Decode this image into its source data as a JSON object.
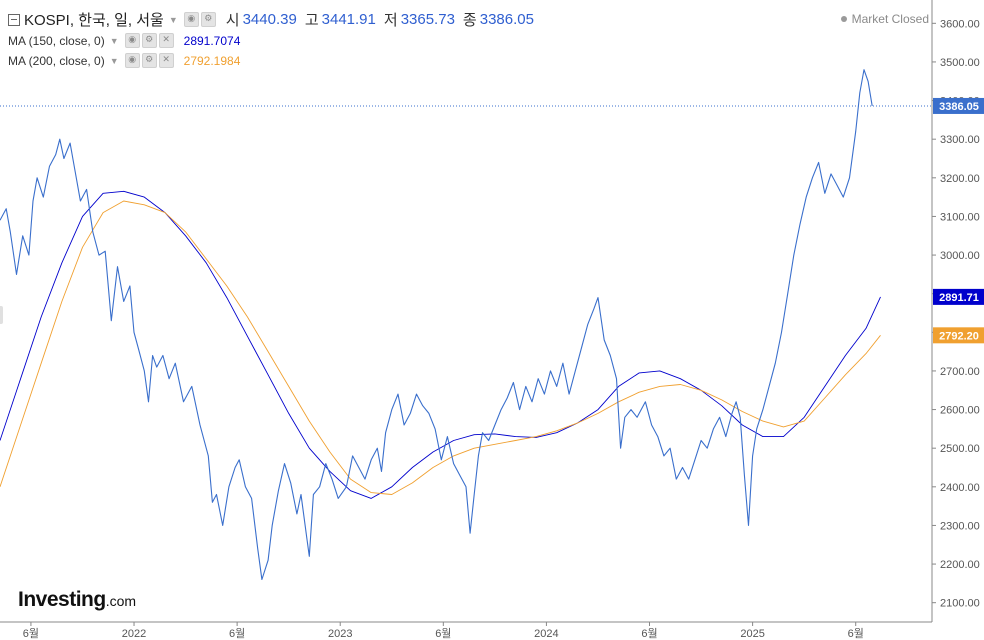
{
  "header": {
    "symbol": "KOSPI, 한국, 일, 서울",
    "open_label": "시",
    "open": "3440.39",
    "high_label": "고",
    "high": "3441.91",
    "low_label": "저",
    "low": "3365.73",
    "close_label": "종",
    "close": "3386.05",
    "status": "Market Closed"
  },
  "indicators": [
    {
      "label": "MA (150, close, 0)",
      "value": "2891.7074",
      "color": "#0000cc"
    },
    {
      "label": "MA (200, close, 0)",
      "value": "2792.1984",
      "color": "#f0a030"
    }
  ],
  "logo": {
    "text": "Investing",
    "suffix": ".com"
  },
  "price_tags": {
    "last": "3386.05",
    "ma150": "2891.71",
    "ma200": "2792.20"
  },
  "colors": {
    "price": "#3a6fcc",
    "ma150": "#0000cc",
    "ma200": "#f0a030",
    "last_tag": "#3a6fcc",
    "axis": "#555555"
  },
  "chart_data": {
    "type": "line",
    "x_ticks": [
      {
        "label": "6월",
        "t": 1
      },
      {
        "label": "2022",
        "t": 6
      },
      {
        "label": "6월",
        "t": 11
      },
      {
        "label": "2023",
        "t": 16
      },
      {
        "label": "6월",
        "t": 21
      },
      {
        "label": "2024",
        "t": 26
      },
      {
        "label": "6월",
        "t": 31
      },
      {
        "label": "2025",
        "t": 36
      },
      {
        "label": "6월",
        "t": 41
      }
    ],
    "y_ticks": [
      2100,
      2200,
      2300,
      2400,
      2500,
      2600,
      2700,
      2800,
      2900,
      3000,
      3100,
      3200,
      3300,
      3400,
      3500,
      3600
    ],
    "ylim": [
      2050,
      3650
    ],
    "xlim": [
      -0.5,
      44.7
    ],
    "series": [
      {
        "name": "KOSPI",
        "points": [
          [
            -0.5,
            3090
          ],
          [
            -0.2,
            3120
          ],
          [
            0.0,
            3060
          ],
          [
            0.3,
            2950
          ],
          [
            0.6,
            3050
          ],
          [
            0.9,
            3000
          ],
          [
            1.1,
            3140
          ],
          [
            1.3,
            3200
          ],
          [
            1.6,
            3150
          ],
          [
            1.9,
            3230
          ],
          [
            2.2,
            3260
          ],
          [
            2.4,
            3300
          ],
          [
            2.6,
            3250
          ],
          [
            2.9,
            3290
          ],
          [
            3.1,
            3230
          ],
          [
            3.4,
            3140
          ],
          [
            3.7,
            3170
          ],
          [
            4.0,
            3060
          ],
          [
            4.3,
            3000
          ],
          [
            4.6,
            3010
          ],
          [
            4.9,
            2830
          ],
          [
            5.2,
            2970
          ],
          [
            5.5,
            2880
          ],
          [
            5.8,
            2920
          ],
          [
            6.0,
            2800
          ],
          [
            6.2,
            2760
          ],
          [
            6.5,
            2700
          ],
          [
            6.7,
            2620
          ],
          [
            6.9,
            2740
          ],
          [
            7.1,
            2710
          ],
          [
            7.4,
            2740
          ],
          [
            7.7,
            2680
          ],
          [
            8.0,
            2720
          ],
          [
            8.4,
            2620
          ],
          [
            8.8,
            2660
          ],
          [
            9.2,
            2560
          ],
          [
            9.6,
            2480
          ],
          [
            9.8,
            2360
          ],
          [
            10.0,
            2380
          ],
          [
            10.3,
            2300
          ],
          [
            10.6,
            2400
          ],
          [
            10.9,
            2450
          ],
          [
            11.1,
            2470
          ],
          [
            11.4,
            2400
          ],
          [
            11.7,
            2370
          ],
          [
            12.0,
            2240
          ],
          [
            12.2,
            2160
          ],
          [
            12.5,
            2210
          ],
          [
            12.7,
            2300
          ],
          [
            13.0,
            2390
          ],
          [
            13.3,
            2460
          ],
          [
            13.6,
            2410
          ],
          [
            13.9,
            2330
          ],
          [
            14.1,
            2380
          ],
          [
            14.4,
            2260
          ],
          [
            14.5,
            2220
          ],
          [
            14.7,
            2380
          ],
          [
            15.0,
            2400
          ],
          [
            15.3,
            2460
          ],
          [
            15.6,
            2420
          ],
          [
            15.9,
            2370
          ],
          [
            16.3,
            2400
          ],
          [
            16.6,
            2480
          ],
          [
            16.9,
            2450
          ],
          [
            17.2,
            2420
          ],
          [
            17.5,
            2470
          ],
          [
            17.8,
            2500
          ],
          [
            18.0,
            2440
          ],
          [
            18.2,
            2540
          ],
          [
            18.5,
            2600
          ],
          [
            18.8,
            2640
          ],
          [
            19.1,
            2560
          ],
          [
            19.4,
            2590
          ],
          [
            19.7,
            2640
          ],
          [
            20.0,
            2610
          ],
          [
            20.3,
            2590
          ],
          [
            20.6,
            2550
          ],
          [
            20.9,
            2470
          ],
          [
            21.2,
            2530
          ],
          [
            21.5,
            2460
          ],
          [
            21.8,
            2430
          ],
          [
            22.1,
            2400
          ],
          [
            22.3,
            2280
          ],
          [
            22.5,
            2380
          ],
          [
            22.7,
            2480
          ],
          [
            22.9,
            2540
          ],
          [
            23.2,
            2520
          ],
          [
            23.5,
            2560
          ],
          [
            23.8,
            2600
          ],
          [
            24.1,
            2630
          ],
          [
            24.4,
            2670
          ],
          [
            24.7,
            2600
          ],
          [
            25.0,
            2660
          ],
          [
            25.3,
            2620
          ],
          [
            25.6,
            2680
          ],
          [
            25.9,
            2640
          ],
          [
            26.2,
            2700
          ],
          [
            26.5,
            2660
          ],
          [
            26.8,
            2720
          ],
          [
            27.1,
            2640
          ],
          [
            27.4,
            2700
          ],
          [
            27.7,
            2760
          ],
          [
            28.0,
            2820
          ],
          [
            28.3,
            2860
          ],
          [
            28.5,
            2890
          ],
          [
            28.8,
            2780
          ],
          [
            29.1,
            2740
          ],
          [
            29.4,
            2680
          ],
          [
            29.6,
            2500
          ],
          [
            29.8,
            2580
          ],
          [
            30.1,
            2600
          ],
          [
            30.4,
            2580
          ],
          [
            30.8,
            2620
          ],
          [
            31.1,
            2560
          ],
          [
            31.4,
            2530
          ],
          [
            31.7,
            2480
          ],
          [
            32.0,
            2500
          ],
          [
            32.3,
            2420
          ],
          [
            32.6,
            2450
          ],
          [
            32.9,
            2420
          ],
          [
            33.2,
            2470
          ],
          [
            33.5,
            2520
          ],
          [
            33.8,
            2500
          ],
          [
            34.1,
            2550
          ],
          [
            34.4,
            2580
          ],
          [
            34.7,
            2530
          ],
          [
            35.0,
            2590
          ],
          [
            35.2,
            2620
          ],
          [
            35.4,
            2580
          ],
          [
            35.6,
            2430
          ],
          [
            35.8,
            2300
          ],
          [
            36.0,
            2480
          ],
          [
            36.2,
            2550
          ],
          [
            36.5,
            2600
          ],
          [
            36.8,
            2660
          ],
          [
            37.1,
            2720
          ],
          [
            37.4,
            2800
          ],
          [
            37.7,
            2900
          ],
          [
            38.0,
            3000
          ],
          [
            38.3,
            3080
          ],
          [
            38.6,
            3150
          ],
          [
            38.9,
            3200
          ],
          [
            39.2,
            3240
          ],
          [
            39.5,
            3160
          ],
          [
            39.8,
            3210
          ],
          [
            40.1,
            3180
          ],
          [
            40.4,
            3150
          ],
          [
            40.7,
            3200
          ],
          [
            41.0,
            3320
          ],
          [
            41.2,
            3420
          ],
          [
            41.4,
            3480
          ],
          [
            41.6,
            3450
          ],
          [
            41.8,
            3386.05
          ]
        ]
      },
      {
        "name": "MA (150, close, 0)",
        "points": [
          [
            -0.5,
            2520
          ],
          [
            0.5,
            2680
          ],
          [
            1.5,
            2840
          ],
          [
            2.5,
            2980
          ],
          [
            3.5,
            3100
          ],
          [
            4.5,
            3160
          ],
          [
            5.5,
            3165
          ],
          [
            6.5,
            3150
          ],
          [
            7.5,
            3110
          ],
          [
            8.5,
            3050
          ],
          [
            9.5,
            2980
          ],
          [
            10.5,
            2890
          ],
          [
            11.5,
            2790
          ],
          [
            12.5,
            2690
          ],
          [
            13.5,
            2590
          ],
          [
            14.5,
            2500
          ],
          [
            15.5,
            2440
          ],
          [
            16.5,
            2390
          ],
          [
            17.5,
            2370
          ],
          [
            18.5,
            2400
          ],
          [
            19.5,
            2450
          ],
          [
            20.5,
            2490
          ],
          [
            21.5,
            2520
          ],
          [
            22.5,
            2535
          ],
          [
            23.5,
            2537
          ],
          [
            24.5,
            2530
          ],
          [
            25.5,
            2528
          ],
          [
            26.5,
            2540
          ],
          [
            27.5,
            2565
          ],
          [
            28.5,
            2600
          ],
          [
            29.5,
            2660
          ],
          [
            30.5,
            2695
          ],
          [
            31.5,
            2700
          ],
          [
            32.5,
            2680
          ],
          [
            33.5,
            2650
          ],
          [
            34.5,
            2610
          ],
          [
            35.5,
            2560
          ],
          [
            36.5,
            2530
          ],
          [
            37.5,
            2530
          ],
          [
            38.5,
            2580
          ],
          [
            39.5,
            2660
          ],
          [
            40.5,
            2740
          ],
          [
            41.5,
            2810
          ],
          [
            42.2,
            2891.71
          ]
        ]
      },
      {
        "name": "MA (200, close, 0)",
        "points": [
          [
            -0.5,
            2400
          ],
          [
            0.5,
            2560
          ],
          [
            1.5,
            2720
          ],
          [
            2.5,
            2880
          ],
          [
            3.5,
            3020
          ],
          [
            4.5,
            3110
          ],
          [
            5.5,
            3140
          ],
          [
            6.5,
            3130
          ],
          [
            7.5,
            3110
          ],
          [
            8.5,
            3060
          ],
          [
            9.5,
            2990
          ],
          [
            10.5,
            2920
          ],
          [
            11.5,
            2840
          ],
          [
            12.5,
            2750
          ],
          [
            13.5,
            2660
          ],
          [
            14.5,
            2570
          ],
          [
            15.5,
            2490
          ],
          [
            16.5,
            2420
          ],
          [
            17.5,
            2385
          ],
          [
            18.5,
            2380
          ],
          [
            19.5,
            2410
          ],
          [
            20.5,
            2450
          ],
          [
            21.5,
            2480
          ],
          [
            22.5,
            2500
          ],
          [
            23.5,
            2510
          ],
          [
            24.5,
            2520
          ],
          [
            25.5,
            2530
          ],
          [
            26.5,
            2545
          ],
          [
            27.5,
            2565
          ],
          [
            28.5,
            2590
          ],
          [
            29.5,
            2620
          ],
          [
            30.5,
            2645
          ],
          [
            31.5,
            2660
          ],
          [
            32.5,
            2665
          ],
          [
            33.5,
            2650
          ],
          [
            34.5,
            2625
          ],
          [
            35.5,
            2595
          ],
          [
            36.5,
            2570
          ],
          [
            37.5,
            2555
          ],
          [
            38.5,
            2570
          ],
          [
            39.5,
            2630
          ],
          [
            40.5,
            2690
          ],
          [
            41.5,
            2745
          ],
          [
            42.2,
            2792.2
          ]
        ]
      }
    ],
    "last_value": 3386.05
  }
}
